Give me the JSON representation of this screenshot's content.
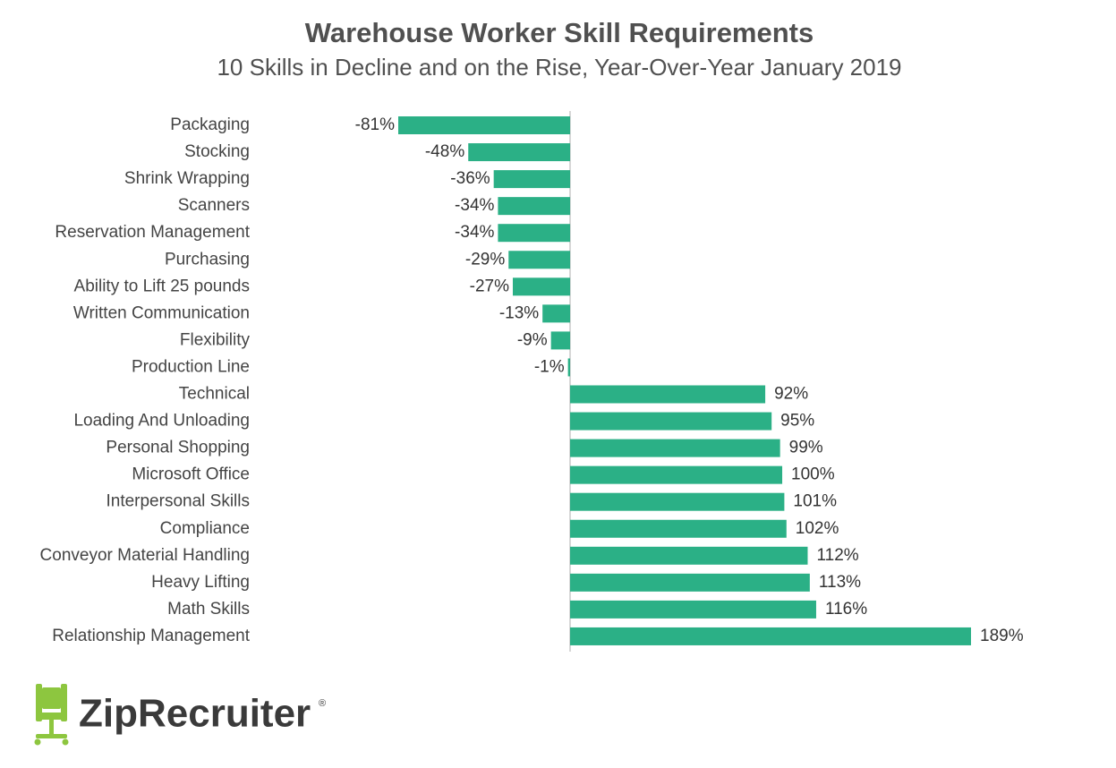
{
  "chart_data": {
    "type": "bar",
    "orientation": "horizontal",
    "title": "Warehouse Worker Skill Requirements",
    "subtitle": "10 Skills in Decline and on the Rise, Year-Over-Year January 2019",
    "categories": [
      "Packaging",
      "Stocking",
      "Shrink Wrapping",
      "Scanners",
      "Reservation Management",
      "Purchasing",
      "Ability to Lift 25 pounds",
      "Written Communication",
      "Flexibility",
      "Production Line",
      "Technical",
      "Loading And Unloading",
      "Personal Shopping",
      "Microsoft Office",
      "Interpersonal Skills",
      "Compliance",
      "Conveyor Material Handling",
      "Heavy Lifting",
      "Math Skills",
      "Relationship Management"
    ],
    "values": [
      -81,
      -48,
      -36,
      -34,
      -34,
      -29,
      -27,
      -13,
      -9,
      -1,
      92,
      95,
      99,
      100,
      101,
      102,
      112,
      113,
      116,
      189
    ],
    "value_labels": [
      "-81%",
      "-48%",
      "-36%",
      "-34%",
      "-34%",
      "-29%",
      "-27%",
      "-13%",
      "-9%",
      "-1%",
      "92%",
      "95%",
      "99%",
      "100%",
      "101%",
      "102%",
      "112%",
      "113%",
      "116%",
      "189%"
    ],
    "color": "#2bb086"
  },
  "logo": {
    "text": "ZipRecruiter",
    "mark": "®"
  }
}
